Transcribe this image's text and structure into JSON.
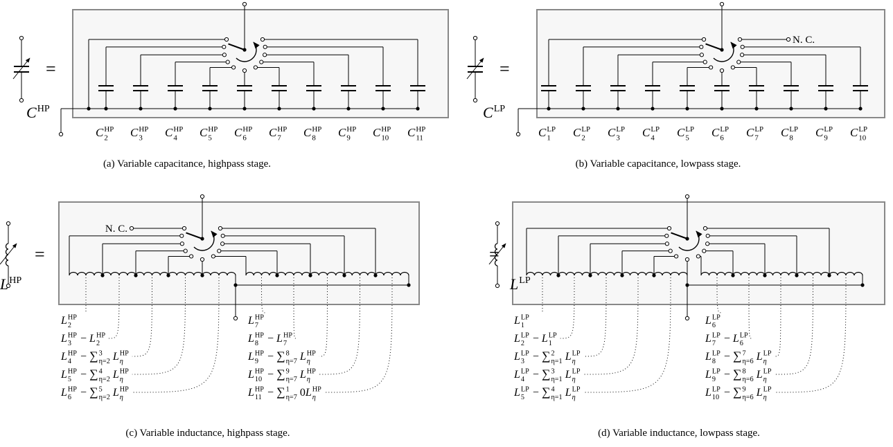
{
  "panels": [
    {
      "caption": "(a) Variable capacitance, highpass stage.",
      "symbol": [
        {
          "t": "C",
          "sup": "HP"
        }
      ],
      "equals": "=",
      "labels": [
        [
          {
            "t": "C",
            "sub": "2",
            "sup": "HP"
          }
        ],
        [
          {
            "t": "C",
            "sub": "3",
            "sup": "HP"
          }
        ],
        [
          {
            "t": "C",
            "sub": "4",
            "sup": "HP"
          }
        ],
        [
          {
            "t": "C",
            "sub": "5",
            "sup": "HP"
          }
        ],
        [
          {
            "t": "C",
            "sub": "6",
            "sup": "HP"
          }
        ],
        [
          {
            "t": "C",
            "sub": "7",
            "sup": "HP"
          }
        ],
        [
          {
            "t": "C",
            "sub": "8",
            "sup": "HP"
          }
        ],
        [
          {
            "t": "C",
            "sub": "9",
            "sup": "HP"
          }
        ],
        [
          {
            "t": "C",
            "sub": "10",
            "sup": "HP"
          }
        ],
        [
          {
            "t": "C",
            "sub": "11",
            "sup": "HP"
          }
        ]
      ]
    },
    {
      "caption": "(b) Variable capacitance, lowpass stage.",
      "symbol": [
        {
          "t": "C",
          "sup": "LP"
        }
      ],
      "equals": "=",
      "nc": "N. C.",
      "labels": [
        [
          {
            "t": "C",
            "sub": "1",
            "sup": "LP"
          }
        ],
        [
          {
            "t": "C",
            "sub": "2",
            "sup": "LP"
          }
        ],
        [
          {
            "t": "C",
            "sub": "3",
            "sup": "LP"
          }
        ],
        [
          {
            "t": "C",
            "sub": "4",
            "sup": "LP"
          }
        ],
        [
          {
            "t": "C",
            "sub": "5",
            "sup": "LP"
          }
        ],
        [
          {
            "t": "C",
            "sub": "6",
            "sup": "LP"
          }
        ],
        [
          {
            "t": "C",
            "sub": "7",
            "sup": "LP"
          }
        ],
        [
          {
            "t": "C",
            "sub": "8",
            "sup": "LP"
          }
        ],
        [
          {
            "t": "C",
            "sub": "9",
            "sup": "LP"
          }
        ],
        [
          {
            "t": "C",
            "sub": "10",
            "sup": "LP"
          }
        ]
      ]
    },
    {
      "caption": "(c) Variable inductance, highpass stage.",
      "symbol": [
        {
          "t": "L",
          "sup": "HP"
        }
      ],
      "equals": "=",
      "nc": "N. C.",
      "formulas": [
        [
          {
            "t": "L",
            "sub": "2",
            "sup": "HP"
          }
        ],
        [
          {
            "t": "L",
            "sub": "3",
            "sup": "HP"
          },
          {
            "t": " − "
          },
          {
            "t": "L",
            "sub": "2",
            "sup": "HP"
          }
        ],
        [
          {
            "t": "L",
            "sub": "4",
            "sup": "HP"
          },
          {
            "t": " − "
          },
          {
            "t": "∑",
            "sub": "η=2",
            "sup": "3"
          },
          {
            "t": "L",
            "sub": "η",
            "sup": "HP"
          }
        ],
        [
          {
            "t": "L",
            "sub": "5",
            "sup": "HP"
          },
          {
            "t": " − "
          },
          {
            "t": "∑",
            "sub": "η=2",
            "sup": "4"
          },
          {
            "t": "L",
            "sub": "η",
            "sup": "HP"
          }
        ],
        [
          {
            "t": "L",
            "sub": "6",
            "sup": "HP"
          },
          {
            "t": " − "
          },
          {
            "t": "∑",
            "sub": "η=2",
            "sup": "5"
          },
          {
            "t": "L",
            "sub": "η",
            "sup": "HP"
          }
        ],
        [
          {
            "t": "L",
            "sub": "7",
            "sup": "HP"
          }
        ],
        [
          {
            "t": "L",
            "sub": "8",
            "sup": "HP"
          },
          {
            "t": " − "
          },
          {
            "t": "L",
            "sub": "7",
            "sup": "HP"
          }
        ],
        [
          {
            "t": "L",
            "sub": "9",
            "sup": "HP"
          },
          {
            "t": " − "
          },
          {
            "t": "∑",
            "sub": "η=7",
            "sup": "8"
          },
          {
            "t": "L",
            "sub": "η",
            "sup": "HP"
          }
        ],
        [
          {
            "t": "L",
            "sub": "10",
            "sup": "HP"
          },
          {
            "t": " − "
          },
          {
            "t": "∑",
            "sub": "η=7",
            "sup": "9"
          },
          {
            "t": "L",
            "sub": "η",
            "sup": "HP"
          }
        ],
        [
          {
            "t": "L",
            "sub": "11",
            "sup": "HP"
          },
          {
            "t": " − "
          },
          {
            "t": "∑",
            "sub": "η=7",
            "sup": "1"
          },
          {
            "t": "0"
          },
          {
            "t": "L",
            "sub": "η",
            "sup": "HP"
          }
        ]
      ]
    },
    {
      "caption": "(d) Variable inductance, lowpass stage.",
      "symbol": [
        {
          "t": "L",
          "sup": "LP"
        }
      ],
      "equals": "=",
      "formulas": [
        [
          {
            "t": "L",
            "sub": "1",
            "sup": "LP"
          }
        ],
        [
          {
            "t": "L",
            "sub": "2",
            "sup": "LP"
          },
          {
            "t": " − "
          },
          {
            "t": "L",
            "sub": "1",
            "sup": "LP"
          }
        ],
        [
          {
            "t": "L",
            "sub": "3",
            "sup": "LP"
          },
          {
            "t": " − "
          },
          {
            "t": "∑",
            "sub": "η=1",
            "sup": "2"
          },
          {
            "t": "L",
            "sub": "η",
            "sup": "LP"
          }
        ],
        [
          {
            "t": "L",
            "sub": "4",
            "sup": "LP"
          },
          {
            "t": " − "
          },
          {
            "t": "∑",
            "sub": "η=1",
            "sup": "3"
          },
          {
            "t": "L",
            "sub": "η",
            "sup": "LP"
          }
        ],
        [
          {
            "t": "L",
            "sub": "5",
            "sup": "LP"
          },
          {
            "t": " − "
          },
          {
            "t": "∑",
            "sub": "η=1",
            "sup": "4"
          },
          {
            "t": "L",
            "sub": "η",
            "sup": "LP"
          }
        ],
        [
          {
            "t": "L",
            "sub": "6",
            "sup": "LP"
          }
        ],
        [
          {
            "t": "L",
            "sub": "7",
            "sup": "LP"
          },
          {
            "t": " − "
          },
          {
            "t": "L",
            "sub": "6",
            "sup": "LP"
          }
        ],
        [
          {
            "t": "L",
            "sub": "8",
            "sup": "LP"
          },
          {
            "t": " − "
          },
          {
            "t": "∑",
            "sub": "η=6",
            "sup": "7"
          },
          {
            "t": "L",
            "sub": "η",
            "sup": "LP"
          }
        ],
        [
          {
            "t": "L",
            "sub": "9",
            "sup": "LP"
          },
          {
            "t": " − "
          },
          {
            "t": "∑",
            "sub": "η=6",
            "sup": "8"
          },
          {
            "t": "L",
            "sub": "η",
            "sup": "LP"
          }
        ],
        [
          {
            "t": "L",
            "sub": "10",
            "sup": "LP"
          },
          {
            "t": " − "
          },
          {
            "t": "∑",
            "sub": "η=6",
            "sup": "9"
          },
          {
            "t": "L",
            "sub": "η",
            "sup": "LP"
          }
        ]
      ]
    }
  ]
}
